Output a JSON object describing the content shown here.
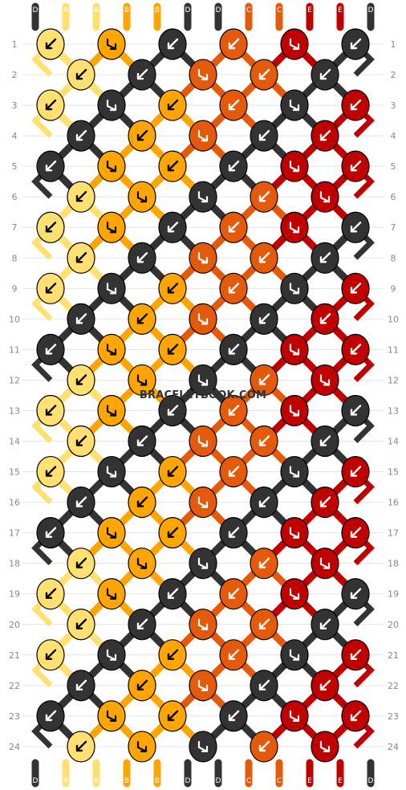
{
  "watermark": "BRACELETBOOK.COM",
  "colors": {
    "A": "#ffe070",
    "B": "#ffa500",
    "C": "#e55a0a",
    "D": "#333333",
    "E": "#c00000"
  },
  "strands_top": [
    "D",
    "A",
    "A",
    "B",
    "B",
    "D",
    "D",
    "C",
    "C",
    "E",
    "E",
    "D"
  ],
  "strands_bottom": [
    "D",
    "A",
    "A",
    "B",
    "B",
    "D",
    "D",
    "C",
    "C",
    "E",
    "E",
    "D"
  ],
  "rows": [
    {
      "label": "1",
      "knots": [
        {
          "c": "A",
          "d": "sw"
        },
        {
          "c": "B",
          "d": "se-turn"
        },
        {
          "c": "D",
          "d": "sw"
        },
        {
          "c": "C",
          "d": "sw"
        },
        {
          "c": "E",
          "d": "se-turn"
        },
        {
          "c": "D",
          "d": "sw"
        }
      ]
    },
    {
      "label": "2",
      "knots": [
        {
          "c": "A",
          "d": "sw"
        },
        {
          "c": "D",
          "d": "sw"
        },
        {
          "c": "C",
          "d": "se-turn"
        },
        {
          "c": "C",
          "d": "sw"
        },
        {
          "c": "D",
          "d": "sw"
        }
      ]
    },
    {
      "label": "3",
      "knots": [
        {
          "c": "A",
          "d": "sw"
        },
        {
          "c": "D",
          "d": "se-turn"
        },
        {
          "c": "B",
          "d": "sw"
        },
        {
          "c": "C",
          "d": "sw"
        },
        {
          "c": "D",
          "d": "se-turn"
        },
        {
          "c": "E",
          "d": "sw"
        }
      ]
    },
    {
      "label": "4",
      "knots": [
        {
          "c": "D",
          "d": "sw"
        },
        {
          "c": "B",
          "d": "sw"
        },
        {
          "c": "C",
          "d": "se-turn"
        },
        {
          "c": "D",
          "d": "sw"
        },
        {
          "c": "E",
          "d": "sw"
        }
      ]
    },
    {
      "label": "5",
      "knots": [
        {
          "c": "D",
          "d": "sw"
        },
        {
          "c": "B",
          "d": "se-turn"
        },
        {
          "c": "B",
          "d": "sw"
        },
        {
          "c": "D",
          "d": "sw"
        },
        {
          "c": "E",
          "d": "se-turn"
        },
        {
          "c": "E",
          "d": "sw"
        }
      ]
    },
    {
      "label": "6",
      "knots": [
        {
          "c": "A",
          "d": "sw"
        },
        {
          "c": "B",
          "d": "se-turn"
        },
        {
          "c": "D",
          "d": "se-turn"
        },
        {
          "c": "C",
          "d": "sw"
        },
        {
          "c": "E",
          "d": "se-turn"
        }
      ]
    },
    {
      "label": "7",
      "knots": [
        {
          "c": "A",
          "d": "sw"
        },
        {
          "c": "B",
          "d": "se-turn"
        },
        {
          "c": "D",
          "d": "sw"
        },
        {
          "c": "C",
          "d": "sw"
        },
        {
          "c": "E",
          "d": "se-turn"
        },
        {
          "c": "D",
          "d": "sw"
        }
      ]
    },
    {
      "label": "8",
      "knots": [
        {
          "c": "A",
          "d": "sw"
        },
        {
          "c": "D",
          "d": "sw"
        },
        {
          "c": "C",
          "d": "se-turn"
        },
        {
          "c": "C",
          "d": "sw"
        },
        {
          "c": "D",
          "d": "sw"
        }
      ]
    },
    {
      "label": "9",
      "knots": [
        {
          "c": "A",
          "d": "sw"
        },
        {
          "c": "D",
          "d": "se-turn"
        },
        {
          "c": "B",
          "d": "sw"
        },
        {
          "c": "C",
          "d": "sw"
        },
        {
          "c": "D",
          "d": "se-turn"
        },
        {
          "c": "E",
          "d": "sw"
        }
      ]
    },
    {
      "label": "10",
      "knots": [
        {
          "c": "D",
          "d": "sw"
        },
        {
          "c": "B",
          "d": "sw"
        },
        {
          "c": "C",
          "d": "se-turn"
        },
        {
          "c": "D",
          "d": "sw"
        },
        {
          "c": "E",
          "d": "sw"
        }
      ]
    },
    {
      "label": "11",
      "knots": [
        {
          "c": "D",
          "d": "sw"
        },
        {
          "c": "B",
          "d": "se-turn"
        },
        {
          "c": "B",
          "d": "sw"
        },
        {
          "c": "D",
          "d": "sw"
        },
        {
          "c": "E",
          "d": "se-turn"
        },
        {
          "c": "E",
          "d": "sw"
        }
      ]
    },
    {
      "label": "12",
      "knots": [
        {
          "c": "A",
          "d": "sw"
        },
        {
          "c": "B",
          "d": "se-turn"
        },
        {
          "c": "D",
          "d": "se-turn"
        },
        {
          "c": "C",
          "d": "sw"
        },
        {
          "c": "E",
          "d": "se-turn"
        }
      ]
    },
    {
      "label": "13",
      "knots": [
        {
          "c": "A",
          "d": "sw"
        },
        {
          "c": "B",
          "d": "se-turn"
        },
        {
          "c": "D",
          "d": "sw"
        },
        {
          "c": "C",
          "d": "sw"
        },
        {
          "c": "E",
          "d": "se-turn"
        },
        {
          "c": "D",
          "d": "sw"
        }
      ]
    },
    {
      "label": "14",
      "knots": [
        {
          "c": "A",
          "d": "sw"
        },
        {
          "c": "D",
          "d": "sw"
        },
        {
          "c": "C",
          "d": "se-turn"
        },
        {
          "c": "C",
          "d": "sw"
        },
        {
          "c": "D",
          "d": "sw"
        }
      ]
    },
    {
      "label": "15",
      "knots": [
        {
          "c": "A",
          "d": "sw"
        },
        {
          "c": "D",
          "d": "se-turn"
        },
        {
          "c": "B",
          "d": "sw"
        },
        {
          "c": "C",
          "d": "sw"
        },
        {
          "c": "D",
          "d": "se-turn"
        },
        {
          "c": "E",
          "d": "sw"
        }
      ]
    },
    {
      "label": "16",
      "knots": [
        {
          "c": "D",
          "d": "sw"
        },
        {
          "c": "B",
          "d": "sw"
        },
        {
          "c": "C",
          "d": "se-turn"
        },
        {
          "c": "D",
          "d": "sw"
        },
        {
          "c": "E",
          "d": "sw"
        }
      ]
    },
    {
      "label": "17",
      "knots": [
        {
          "c": "D",
          "d": "sw"
        },
        {
          "c": "B",
          "d": "se-turn"
        },
        {
          "c": "B",
          "d": "sw"
        },
        {
          "c": "D",
          "d": "sw"
        },
        {
          "c": "E",
          "d": "se-turn"
        },
        {
          "c": "E",
          "d": "sw"
        }
      ]
    },
    {
      "label": "18",
      "knots": [
        {
          "c": "A",
          "d": "sw"
        },
        {
          "c": "B",
          "d": "se-turn"
        },
        {
          "c": "D",
          "d": "se-turn"
        },
        {
          "c": "C",
          "d": "sw"
        },
        {
          "c": "E",
          "d": "se-turn"
        }
      ]
    },
    {
      "label": "19",
      "knots": [
        {
          "c": "A",
          "d": "sw"
        },
        {
          "c": "B",
          "d": "se-turn"
        },
        {
          "c": "D",
          "d": "sw"
        },
        {
          "c": "C",
          "d": "sw"
        },
        {
          "c": "E",
          "d": "se-turn"
        },
        {
          "c": "D",
          "d": "sw"
        }
      ]
    },
    {
      "label": "20",
      "knots": [
        {
          "c": "A",
          "d": "sw"
        },
        {
          "c": "D",
          "d": "sw"
        },
        {
          "c": "C",
          "d": "se-turn"
        },
        {
          "c": "C",
          "d": "sw"
        },
        {
          "c": "D",
          "d": "sw"
        }
      ]
    },
    {
      "label": "21",
      "knots": [
        {
          "c": "A",
          "d": "sw"
        },
        {
          "c": "D",
          "d": "se-turn"
        },
        {
          "c": "B",
          "d": "sw"
        },
        {
          "c": "C",
          "d": "sw"
        },
        {
          "c": "D",
          "d": "se-turn"
        },
        {
          "c": "E",
          "d": "sw"
        }
      ]
    },
    {
      "label": "22",
      "knots": [
        {
          "c": "D",
          "d": "sw"
        },
        {
          "c": "B",
          "d": "sw"
        },
        {
          "c": "C",
          "d": "se-turn"
        },
        {
          "c": "D",
          "d": "sw"
        },
        {
          "c": "E",
          "d": "sw"
        }
      ]
    },
    {
      "label": "23",
      "knots": [
        {
          "c": "D",
          "d": "sw"
        },
        {
          "c": "B",
          "d": "se-turn"
        },
        {
          "c": "B",
          "d": "sw"
        },
        {
          "c": "D",
          "d": "sw"
        },
        {
          "c": "E",
          "d": "se-turn"
        },
        {
          "c": "E",
          "d": "sw"
        }
      ]
    },
    {
      "label": "24",
      "knots": [
        {
          "c": "A",
          "d": "sw"
        },
        {
          "c": "B",
          "d": "se-turn"
        },
        {
          "c": "D",
          "d": "se-turn"
        },
        {
          "c": "C",
          "d": "sw"
        },
        {
          "c": "E",
          "d": "se-turn"
        }
      ]
    }
  ]
}
